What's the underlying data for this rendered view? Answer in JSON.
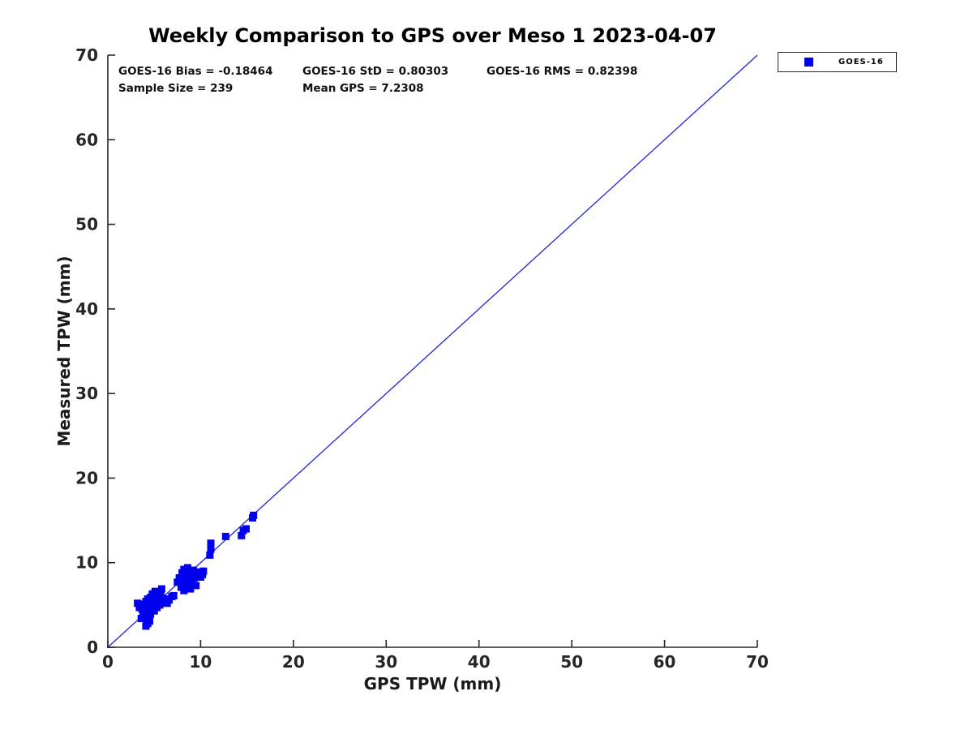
{
  "chart_data": {
    "type": "scatter",
    "title": "Weekly Comparison to GPS over Meso 1 2023-04-07",
    "xlabel": "GPS TPW (mm)",
    "ylabel": "Measured TPW (mm)",
    "xlim": [
      0,
      70
    ],
    "ylim": [
      0,
      70
    ],
    "xticks": [
      0,
      10,
      20,
      30,
      40,
      50,
      60,
      70
    ],
    "yticks": [
      0,
      10,
      20,
      30,
      40,
      50,
      60,
      70
    ],
    "grid": false,
    "legend": {
      "label": "GOES-16",
      "position": "top-right-outside"
    },
    "annotations": {
      "bias": "GOES-16 Bias = -0.18464",
      "std": "GOES-16 StD = 0.80303",
      "rms": "GOES-16 RMS = 0.82398",
      "sample_size": "Sample Size = 239",
      "mean_gps": "Mean GPS = 7.2308"
    },
    "stats_values": {
      "bias": -0.18464,
      "std": 0.80303,
      "rms": 0.82398,
      "sample_size": 239,
      "mean_gps": 7.2308
    },
    "identity_line": {
      "x": [
        0,
        70
      ],
      "y": [
        0,
        70
      ]
    },
    "series": [
      {
        "name": "GOES-16",
        "marker": "square",
        "points": [
          [
            3.2,
            5.2
          ],
          [
            3.4,
            4.7
          ],
          [
            3.5,
            5.0
          ],
          [
            3.7,
            4.5
          ],
          [
            3.8,
            5.1
          ],
          [
            4.0,
            4.8
          ],
          [
            4.1,
            5.4
          ],
          [
            4.2,
            4.3
          ],
          [
            4.3,
            5.7
          ],
          [
            3.6,
            3.4
          ],
          [
            3.8,
            3.7
          ],
          [
            4.1,
            2.5
          ],
          [
            4.3,
            2.8
          ],
          [
            4.2,
            3.3
          ],
          [
            4.5,
            3.1
          ],
          [
            4.6,
            3.9
          ],
          [
            4.4,
            4.1
          ],
          [
            4.4,
            5.1
          ],
          [
            4.5,
            4.6
          ],
          [
            4.6,
            5.9
          ],
          [
            4.7,
            5.3
          ],
          [
            4.8,
            4.5
          ],
          [
            4.8,
            6.3
          ],
          [
            4.9,
            5.0
          ],
          [
            5.0,
            5.7
          ],
          [
            5.0,
            4.3
          ],
          [
            5.1,
            6.6
          ],
          [
            5.2,
            5.2
          ],
          [
            5.3,
            4.7
          ],
          [
            5.4,
            6.1
          ],
          [
            5.5,
            5.5
          ],
          [
            5.6,
            5.0
          ],
          [
            5.7,
            6.4
          ],
          [
            5.8,
            6.9
          ],
          [
            5.9,
            5.8
          ],
          [
            6.0,
            5.3
          ],
          [
            6.2,
            5.7
          ],
          [
            6.4,
            5.2
          ],
          [
            6.6,
            5.6
          ],
          [
            6.9,
            6.0
          ],
          [
            7.1,
            6.1
          ],
          [
            7.5,
            7.7
          ],
          [
            7.7,
            8.2
          ],
          [
            7.9,
            7.1
          ],
          [
            8.0,
            8.8
          ],
          [
            8.1,
            7.6
          ],
          [
            8.2,
            9.2
          ],
          [
            8.2,
            6.7
          ],
          [
            8.3,
            8.1
          ],
          [
            8.4,
            8.7
          ],
          [
            8.5,
            7.4
          ],
          [
            8.6,
            9.4
          ],
          [
            8.6,
            8.3
          ],
          [
            8.7,
            7.9
          ],
          [
            8.8,
            9.0
          ],
          [
            8.9,
            6.9
          ],
          [
            9.0,
            8.5
          ],
          [
            9.1,
            7.7
          ],
          [
            9.2,
            9.1
          ],
          [
            9.3,
            8.2
          ],
          [
            9.4,
            8.8
          ],
          [
            9.5,
            7.3
          ],
          [
            9.6,
            8.5
          ],
          [
            9.8,
            8.9
          ],
          [
            10.0,
            8.3
          ],
          [
            10.2,
            8.6
          ],
          [
            10.3,
            9.0
          ],
          [
            11.0,
            10.9
          ],
          [
            11.1,
            11.6
          ],
          [
            11.1,
            12.3
          ],
          [
            12.7,
            13.1
          ],
          [
            14.4,
            13.2
          ],
          [
            14.6,
            13.8
          ],
          [
            14.9,
            14.0
          ],
          [
            15.6,
            15.3
          ],
          [
            15.7,
            15.6
          ]
        ]
      }
    ]
  },
  "colors": {
    "marker": "#0000EE",
    "identity_line": "#2222DD",
    "axis": "#262626",
    "text": "#111111"
  }
}
